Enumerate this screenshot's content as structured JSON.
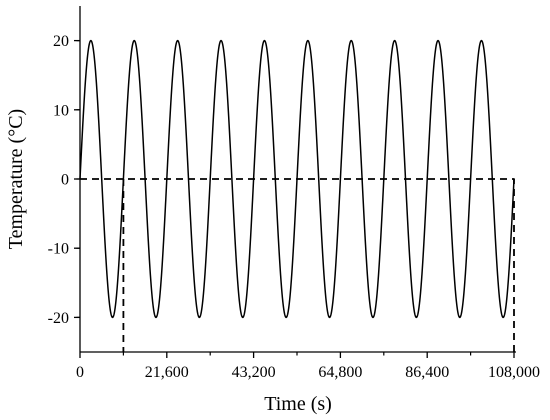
{
  "chart_data": {
    "type": "line",
    "title": "",
    "xlabel": "Time (s)",
    "ylabel": "Temperature (°C)",
    "xlim": [
      0,
      108000
    ],
    "ylim": [
      -25,
      25
    ],
    "x_ticks": [
      0,
      21600,
      43200,
      64800,
      86400,
      108000
    ],
    "x_tick_labels": [
      "0",
      "21,600",
      "43,200",
      "64,800",
      "86,400",
      "108,000"
    ],
    "y_ticks": [
      -20,
      -10,
      0,
      10,
      20
    ],
    "y_tick_labels": [
      "-20",
      "-10",
      "0",
      "10",
      "20"
    ],
    "grid": false,
    "legend": false,
    "series": [
      {
        "line_style": "solid",
        "color": "#000000",
        "function": "amplitude * sin(2π t / period)",
        "amplitude": 20,
        "period": 10800,
        "x_range": [
          0,
          108000
        ]
      },
      {
        "line_style": "dashed",
        "color": "#000000",
        "x": [
          0,
          108000,
          108000
        ],
        "y": [
          0,
          0,
          -25
        ]
      },
      {
        "line_style": "dashed",
        "color": "#000000",
        "x": [
          10800,
          10800
        ],
        "y": [
          0,
          -25
        ]
      }
    ]
  }
}
